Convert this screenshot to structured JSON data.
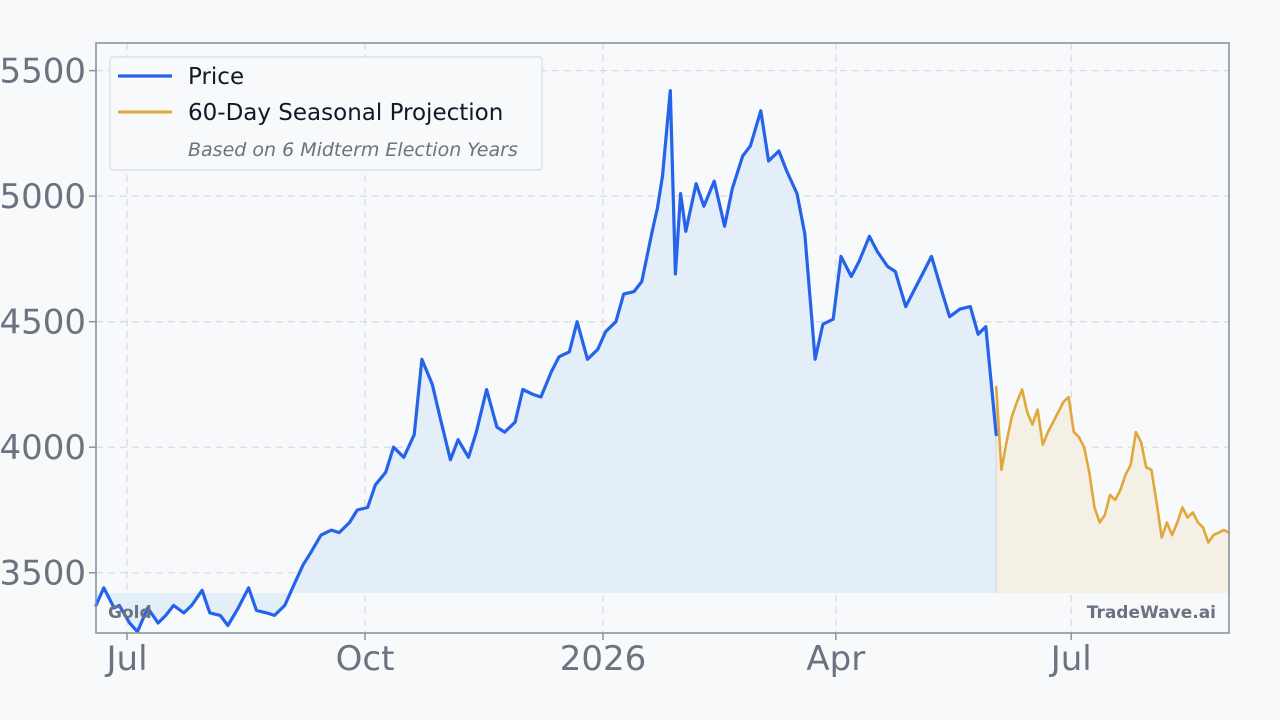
{
  "chart_data": {
    "type": "line",
    "title": "",
    "xlabel": "",
    "ylabel": "",
    "ylim": [
      3260,
      5610
    ],
    "y_ticks": [
      "3500",
      "4000",
      "4500",
      "5000",
      "5500"
    ],
    "x_ticks": [
      "Jul",
      "Oct",
      "2026",
      "Apr",
      "Jul"
    ],
    "x_range": [
      "2025-06-19",
      "2026-08-31"
    ],
    "grid": true,
    "legend_position": "top-left",
    "asset_label": "Gold",
    "watermark": "TradeWave.ai",
    "legend_note": "Based on 6 Midterm Election Years",
    "colors": {
      "price": "#2563eb",
      "projection": "#e0a83a",
      "price_fill": "#e3eef9",
      "projection_fill": "#f5f0e6"
    },
    "series": [
      {
        "name": "Price",
        "x": [
          "2025-06-19",
          "2025-06-22",
          "2025-06-26",
          "2025-06-28",
          "2025-07-02",
          "2025-07-05",
          "2025-07-09",
          "2025-07-13",
          "2025-07-16",
          "2025-07-19",
          "2025-07-23",
          "2025-07-26",
          "2025-07-30",
          "2025-08-02",
          "2025-08-06",
          "2025-08-09",
          "2025-08-13",
          "2025-08-17",
          "2025-08-20",
          "2025-08-24",
          "2025-08-27",
          "2025-08-31",
          "2025-09-03",
          "2025-09-07",
          "2025-09-10",
          "2025-09-14",
          "2025-09-18",
          "2025-09-21",
          "2025-09-25",
          "2025-09-28",
          "2025-10-02",
          "2025-10-05",
          "2025-10-09",
          "2025-10-12",
          "2025-10-16",
          "2025-10-20",
          "2025-10-23",
          "2025-10-27",
          "2025-10-30",
          "2025-11-03",
          "2025-11-06",
          "2025-11-10",
          "2025-11-13",
          "2025-11-17",
          "2025-11-21",
          "2025-11-24",
          "2025-11-28",
          "2025-12-01",
          "2025-12-05",
          "2025-12-08",
          "2025-12-12",
          "2025-12-15",
          "2025-12-19",
          "2025-12-22",
          "2025-12-26",
          "2025-12-30",
          "2026-01-02",
          "2026-01-06",
          "2026-01-09",
          "2026-01-13",
          "2026-01-16",
          "2026-01-20",
          "2026-01-22",
          "2026-01-24",
          "2026-01-27",
          "2026-01-29",
          "2026-01-31",
          "2026-02-02",
          "2026-02-06",
          "2026-02-09",
          "2026-02-13",
          "2026-02-17",
          "2026-02-20",
          "2026-02-24",
          "2026-02-27",
          "2026-03-03",
          "2026-03-06",
          "2026-03-10",
          "2026-03-13",
          "2026-03-17",
          "2026-03-20",
          "2026-03-24",
          "2026-03-27",
          "2026-03-31",
          "2026-04-03",
          "2026-04-07",
          "2026-04-10",
          "2026-04-14",
          "2026-04-17",
          "2026-04-21",
          "2026-04-24",
          "2026-04-28",
          "2026-05-01",
          "2026-05-05",
          "2026-05-08",
          "2026-05-12",
          "2026-05-15",
          "2026-05-19",
          "2026-05-23",
          "2026-05-26",
          "2026-05-29",
          "2026-06-02"
        ],
        "values": [
          3370,
          3440,
          3360,
          3370,
          3300,
          3265,
          3360,
          3300,
          3330,
          3370,
          3340,
          3370,
          3430,
          3340,
          3330,
          3290,
          3360,
          3440,
          3350,
          3340,
          3330,
          3370,
          3440,
          3530,
          3580,
          3650,
          3670,
          3660,
          3700,
          3750,
          3760,
          3850,
          3900,
          4000,
          3960,
          4050,
          4350,
          4250,
          4120,
          3950,
          4030,
          3960,
          4060,
          4230,
          4080,
          4060,
          4100,
          4230,
          4210,
          4200,
          4300,
          4360,
          4380,
          4500,
          4350,
          4390,
          4460,
          4500,
          4610,
          4620,
          4660,
          4860,
          4950,
          5080,
          5420,
          4690,
          5010,
          4860,
          5050,
          4960,
          5060,
          4880,
          5030,
          5160,
          5200,
          5340,
          5140,
          5180,
          5100,
          5010,
          4850,
          4350,
          4490,
          4510,
          4760,
          4680,
          4740,
          4840,
          4780,
          4720,
          4700,
          4560,
          4620,
          4700,
          4760,
          4620,
          4520,
          4550,
          4560,
          4450,
          4480,
          4050
        ]
      },
      {
        "name": "60-Day Seasonal Projection",
        "x": [
          "2026-06-02",
          "2026-06-04",
          "2026-06-06",
          "2026-06-08",
          "2026-06-10",
          "2026-06-12",
          "2026-06-14",
          "2026-06-16",
          "2026-06-18",
          "2026-06-20",
          "2026-06-22",
          "2026-06-24",
          "2026-06-26",
          "2026-06-28",
          "2026-06-30",
          "2026-07-02",
          "2026-07-04",
          "2026-07-06",
          "2026-07-08",
          "2026-07-10",
          "2026-07-12",
          "2026-07-14",
          "2026-07-16",
          "2026-07-18",
          "2026-07-20",
          "2026-07-22",
          "2026-07-24",
          "2026-07-26",
          "2026-07-28",
          "2026-07-30",
          "2026-08-01",
          "2026-08-03",
          "2026-08-05",
          "2026-08-07",
          "2026-08-09",
          "2026-08-11",
          "2026-08-13",
          "2026-08-15",
          "2026-08-17",
          "2026-08-19",
          "2026-08-21",
          "2026-08-23",
          "2026-08-25",
          "2026-08-27",
          "2026-08-29",
          "2026-08-31"
        ],
        "values": [
          4240,
          3910,
          4020,
          4120,
          4180,
          4230,
          4140,
          4090,
          4150,
          4010,
          4060,
          4100,
          4140,
          4180,
          4200,
          4060,
          4040,
          4000,
          3900,
          3760,
          3700,
          3730,
          3810,
          3790,
          3830,
          3890,
          3930,
          4060,
          4020,
          3920,
          3910,
          3780,
          3640,
          3700,
          3650,
          3700,
          3760,
          3720,
          3740,
          3700,
          3680,
          3620,
          3650,
          3660,
          3670,
          3660
        ]
      }
    ]
  },
  "legend": [
    {
      "label": "Price",
      "color_key": "price"
    },
    {
      "label": "60-Day Seasonal Projection",
      "color_key": "projection"
    }
  ]
}
